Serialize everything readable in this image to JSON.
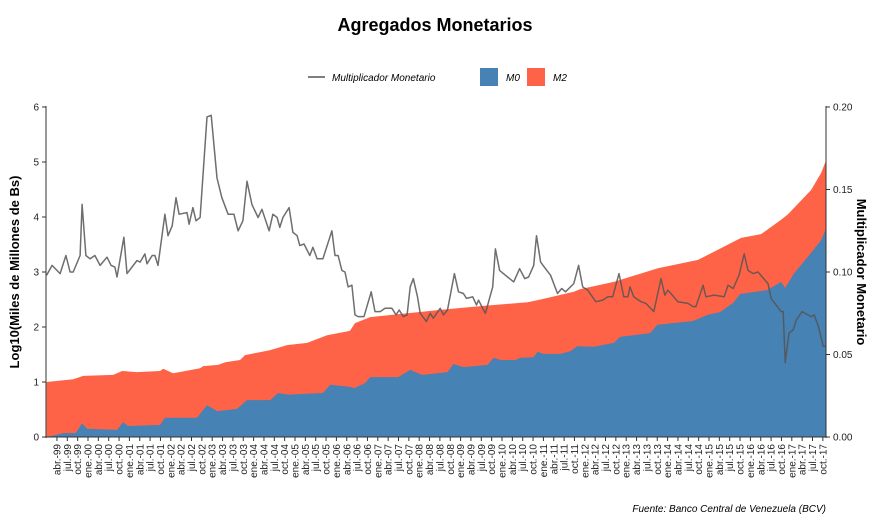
{
  "chart_data": {
    "type": "area",
    "title": "Agregados Monetarios",
    "source": "Fuente: Banco Central de Venezuela (BCV)",
    "ylabel": "Log10(Miles de Millones de Bs)",
    "y2label": "Multiplicador Monetario",
    "ylim": [
      0,
      6
    ],
    "y2lim": [
      0,
      0.2
    ],
    "yticks": [
      "0",
      "1",
      "2",
      "3",
      "4",
      "5",
      "6"
    ],
    "y2ticks": [
      "0.00",
      "0.05",
      "0.10",
      "0.15",
      "0.20"
    ],
    "x_unit": "months since ene-99",
    "xlim": [
      0,
      226
    ],
    "xtick_labels": [
      "abr.-99",
      "jul.-99",
      "oct.-99",
      "ene.-00",
      "abr.-00",
      "jul.-00",
      "oct.-00",
      "ene.-01",
      "abr.-01",
      "jul.-01",
      "oct.-01",
      "ene.-02",
      "abr.-02",
      "jul.-02",
      "oct.-02",
      "ene.-03",
      "abr.-03",
      "jul.-03",
      "oct.-03",
      "ene.-04",
      "abr.-04",
      "jul.-04",
      "oct.-04",
      "ene.-05",
      "abr.-05",
      "jul.-05",
      "oct.-05",
      "ene.-06",
      "abr.-06",
      "jul.-06",
      "oct.-06",
      "ene.-07",
      "abr.-07",
      "jul.-07",
      "oct.-07",
      "ene.-08",
      "abr.-08",
      "jul.-08",
      "oct.-08",
      "ene.-09",
      "abr.-09",
      "jul.-09",
      "oct.-09",
      "ene.-10",
      "abr.-10",
      "jul.-10",
      "oct.-10",
      "ene.-11",
      "abr.-11",
      "jul.-11",
      "oct.-11",
      "ene.-12",
      "abr.-12",
      "jul.-12",
      "oct.-12",
      "ene.-13",
      "abr.-13",
      "jul.-13",
      "oct.-13",
      "ene.-14",
      "abr.-14",
      "jul.-14",
      "oct.-14",
      "ene.-15",
      "abr.-15",
      "jul.-15",
      "oct.-15",
      "ene.-16",
      "abr.-16",
      "jul.-16",
      "oct.-16",
      "ene.-17",
      "abr.-17",
      "jul.-17",
      "oct.-17"
    ],
    "legend": {
      "position": "top",
      "line_label": "Multiplicador Monetario",
      "area_labels": [
        "M0",
        "M2"
      ]
    },
    "colors": {
      "M0": "#4682B4",
      "M2": "#FF6347",
      "line": "#555555"
    },
    "series": [
      {
        "name": "M2",
        "axis": "left",
        "points": [
          [
            0,
            1.0
          ],
          [
            7.7,
            1.05
          ],
          [
            10.6,
            1.11
          ],
          [
            19.3,
            1.13
          ],
          [
            21.9,
            1.2
          ],
          [
            26.2,
            1.18
          ],
          [
            32.9,
            1.2
          ],
          [
            33.8,
            1.24
          ],
          [
            36.7,
            1.16
          ],
          [
            44.5,
            1.25
          ],
          [
            45.4,
            1.29
          ],
          [
            49.7,
            1.31
          ],
          [
            51.8,
            1.36
          ],
          [
            56.1,
            1.4
          ],
          [
            57.5,
            1.49
          ],
          [
            64.8,
            1.58
          ],
          [
            69.7,
            1.67
          ],
          [
            75.5,
            1.71
          ],
          [
            81.3,
            1.85
          ],
          [
            87.9,
            1.93
          ],
          [
            89.4,
            2.07
          ],
          [
            93.8,
            2.18
          ],
          [
            114.1,
            2.31
          ],
          [
            125.7,
            2.38
          ],
          [
            139.4,
            2.45
          ],
          [
            143.2,
            2.5
          ],
          [
            152.8,
            2.64
          ],
          [
            154.7,
            2.69
          ],
          [
            164.4,
            2.82
          ],
          [
            177.2,
            3.07
          ],
          [
            188.8,
            3.22
          ],
          [
            201.3,
            3.62
          ],
          [
            207.1,
            3.69
          ],
          [
            212.9,
            3.95
          ],
          [
            214.9,
            4.05
          ],
          [
            221.6,
            4.49
          ],
          [
            224.5,
            4.8
          ],
          [
            226,
            5.04
          ]
        ]
      },
      {
        "name": "M0",
        "axis": "left",
        "points": [
          [
            0,
            0.0
          ],
          [
            4.9,
            0.07
          ],
          [
            8.4,
            0.07
          ],
          [
            10.3,
            0.25
          ],
          [
            11.7,
            0.15
          ],
          [
            20.4,
            0.13
          ],
          [
            22.2,
            0.27
          ],
          [
            23.6,
            0.2
          ],
          [
            32.9,
            0.22
          ],
          [
            34.3,
            0.35
          ],
          [
            43.6,
            0.35
          ],
          [
            46.5,
            0.58
          ],
          [
            49.4,
            0.47
          ],
          [
            55.2,
            0.51
          ],
          [
            58.1,
            0.67
          ],
          [
            64.8,
            0.67
          ],
          [
            67.1,
            0.8
          ],
          [
            70,
            0.77
          ],
          [
            80.1,
            0.8
          ],
          [
            82.2,
            0.95
          ],
          [
            88,
            0.91
          ],
          [
            89.2,
            0.89
          ],
          [
            92.3,
            0.98
          ],
          [
            93.8,
            1.09
          ],
          [
            101.9,
            1.09
          ],
          [
            105.4,
            1.22
          ],
          [
            108.9,
            1.13
          ],
          [
            116.2,
            1.18
          ],
          [
            117.9,
            1.33
          ],
          [
            120.8,
            1.27
          ],
          [
            127.8,
            1.31
          ],
          [
            129.6,
            1.44
          ],
          [
            131.6,
            1.4
          ],
          [
            135.9,
            1.4
          ],
          [
            137.3,
            1.44
          ],
          [
            141.2,
            1.45
          ],
          [
            142.3,
            1.55
          ],
          [
            144,
            1.51
          ],
          [
            148.9,
            1.51
          ],
          [
            151.8,
            1.56
          ],
          [
            153.8,
            1.65
          ],
          [
            158.5,
            1.64
          ],
          [
            164.4,
            1.71
          ],
          [
            166.2,
            1.82
          ],
          [
            174.9,
            1.89
          ],
          [
            177,
            2.04
          ],
          [
            187.4,
            2.11
          ],
          [
            191.5,
            2.22
          ],
          [
            195.2,
            2.27
          ],
          [
            199,
            2.44
          ],
          [
            201,
            2.6
          ],
          [
            208.8,
            2.67
          ],
          [
            212.9,
            2.82
          ],
          [
            214.1,
            2.71
          ],
          [
            216.7,
            2.98
          ],
          [
            221.6,
            3.35
          ],
          [
            224.5,
            3.58
          ],
          [
            226,
            3.8
          ]
        ]
      },
      {
        "name": "Multiplicador Monetario",
        "axis": "right",
        "points": [
          [
            0,
            0.098
          ],
          [
            1.6,
            0.104
          ],
          [
            3.9,
            0.099
          ],
          [
            5.6,
            0.11
          ],
          [
            6.8,
            0.1
          ],
          [
            7.7,
            0.1
          ],
          [
            9.7,
            0.11
          ],
          [
            10.3,
            0.141
          ],
          [
            11.4,
            0.11
          ],
          [
            12.6,
            0.108
          ],
          [
            14,
            0.11
          ],
          [
            15.5,
            0.104
          ],
          [
            17.5,
            0.109
          ],
          [
            18.7,
            0.104
          ],
          [
            19.8,
            0.103
          ],
          [
            20.4,
            0.097
          ],
          [
            22.4,
            0.121
          ],
          [
            23.3,
            0.099
          ],
          [
            26.2,
            0.107
          ],
          [
            27.1,
            0.106
          ],
          [
            28.5,
            0.111
          ],
          [
            29.1,
            0.105
          ],
          [
            30.6,
            0.11
          ],
          [
            31.4,
            0.11
          ],
          [
            32.3,
            0.104
          ],
          [
            34.3,
            0.135
          ],
          [
            35.2,
            0.122
          ],
          [
            36.4,
            0.128
          ],
          [
            37.5,
            0.145
          ],
          [
            38.4,
            0.135
          ],
          [
            40.7,
            0.136
          ],
          [
            41.3,
            0.129
          ],
          [
            42.4,
            0.139
          ],
          [
            43.3,
            0.131
          ],
          [
            44.5,
            0.133
          ],
          [
            46.5,
            0.194
          ],
          [
            47.7,
            0.195
          ],
          [
            49.4,
            0.157
          ],
          [
            50.8,
            0.145
          ],
          [
            52.6,
            0.135
          ],
          [
            54.3,
            0.135
          ],
          [
            55.5,
            0.125
          ],
          [
            56.9,
            0.131
          ],
          [
            58.1,
            0.155
          ],
          [
            59.5,
            0.141
          ],
          [
            61.3,
            0.133
          ],
          [
            62.4,
            0.138
          ],
          [
            64.5,
            0.125
          ],
          [
            65.6,
            0.135
          ],
          [
            66.8,
            0.133
          ],
          [
            67.6,
            0.127
          ],
          [
            68.5,
            0.133
          ],
          [
            70.3,
            0.139
          ],
          [
            71.4,
            0.124
          ],
          [
            72.6,
            0.122
          ],
          [
            73.4,
            0.116
          ],
          [
            74.6,
            0.117
          ],
          [
            76.3,
            0.11
          ],
          [
            77.2,
            0.115
          ],
          [
            78.4,
            0.108
          ],
          [
            80.1,
            0.108
          ],
          [
            82.7,
            0.125
          ],
          [
            83.6,
            0.11
          ],
          [
            84.5,
            0.11
          ],
          [
            85.6,
            0.101
          ],
          [
            86.5,
            0.1
          ],
          [
            87.4,
            0.091
          ],
          [
            88.5,
            0.092
          ],
          [
            89.4,
            0.074
          ],
          [
            90.3,
            0.073
          ],
          [
            92,
            0.073
          ],
          [
            94.1,
            0.088
          ],
          [
            95.2,
            0.076
          ],
          [
            96.7,
            0.076
          ],
          [
            98.1,
            0.078
          ],
          [
            100.1,
            0.078
          ],
          [
            101.3,
            0.074
          ],
          [
            102.2,
            0.077
          ],
          [
            103.4,
            0.073
          ],
          [
            104.5,
            0.074
          ],
          [
            105.4,
            0.091
          ],
          [
            106.3,
            0.096
          ],
          [
            107.5,
            0.085
          ],
          [
            108.3,
            0.075
          ],
          [
            110.1,
            0.07
          ],
          [
            111.2,
            0.075
          ],
          [
            112.1,
            0.072
          ],
          [
            114.1,
            0.078
          ],
          [
            115,
            0.074
          ],
          [
            116.2,
            0.077
          ],
          [
            118.2,
            0.099
          ],
          [
            119.4,
            0.088
          ],
          [
            120.8,
            0.087
          ],
          [
            121.7,
            0.084
          ],
          [
            123.5,
            0.085
          ],
          [
            124.6,
            0.08
          ],
          [
            125.2,
            0.083
          ],
          [
            126.4,
            0.078
          ],
          [
            127.2,
            0.075
          ],
          [
            129.3,
            0.091
          ],
          [
            130.1,
            0.114
          ],
          [
            131.3,
            0.101
          ],
          [
            133,
            0.098
          ],
          [
            135.4,
            0.094
          ],
          [
            137.1,
            0.102
          ],
          [
            138.6,
            0.096
          ],
          [
            139.7,
            0.097
          ],
          [
            141.2,
            0.104
          ],
          [
            142,
            0.122
          ],
          [
            143.2,
            0.106
          ],
          [
            144.6,
            0.102
          ],
          [
            146.1,
            0.098
          ],
          [
            148.1,
            0.087
          ],
          [
            149.3,
            0.09
          ],
          [
            150.4,
            0.088
          ],
          [
            152.8,
            0.093
          ],
          [
            154.2,
            0.104
          ],
          [
            155.4,
            0.091
          ],
          [
            156.8,
            0.089
          ],
          [
            159.2,
            0.082
          ],
          [
            161.2,
            0.083
          ],
          [
            162.7,
            0.085
          ],
          [
            164.1,
            0.085
          ],
          [
            165.9,
            0.099
          ],
          [
            167.3,
            0.085
          ],
          [
            168.5,
            0.085
          ],
          [
            169.1,
            0.091
          ],
          [
            170.2,
            0.085
          ],
          [
            172.3,
            0.082
          ],
          [
            173.7,
            0.081
          ],
          [
            176,
            0.076
          ],
          [
            178.1,
            0.096
          ],
          [
            179.2,
            0.086
          ],
          [
            180.1,
            0.089
          ],
          [
            183,
            0.082
          ],
          [
            185.9,
            0.081
          ],
          [
            187.4,
            0.079
          ],
          [
            188.2,
            0.079
          ],
          [
            190.3,
            0.092
          ],
          [
            191.1,
            0.085
          ],
          [
            193.5,
            0.086
          ],
          [
            196.4,
            0.085
          ],
          [
            197.5,
            0.092
          ],
          [
            199,
            0.09
          ],
          [
            200.7,
            0.098
          ],
          [
            202.2,
            0.111
          ],
          [
            203.3,
            0.101
          ],
          [
            204.8,
            0.099
          ],
          [
            206.2,
            0.1
          ],
          [
            209.1,
            0.093
          ],
          [
            210,
            0.084
          ],
          [
            212.9,
            0.076
          ],
          [
            213.5,
            0.076
          ],
          [
            214.1,
            0.045
          ],
          [
            215.2,
            0.063
          ],
          [
            216.4,
            0.065
          ],
          [
            217.3,
            0.071
          ],
          [
            219,
            0.076
          ],
          [
            221.6,
            0.073
          ],
          [
            222.5,
            0.074
          ],
          [
            223.7,
            0.067
          ],
          [
            225.1,
            0.055
          ],
          [
            226,
            0.055
          ]
        ]
      }
    ]
  }
}
